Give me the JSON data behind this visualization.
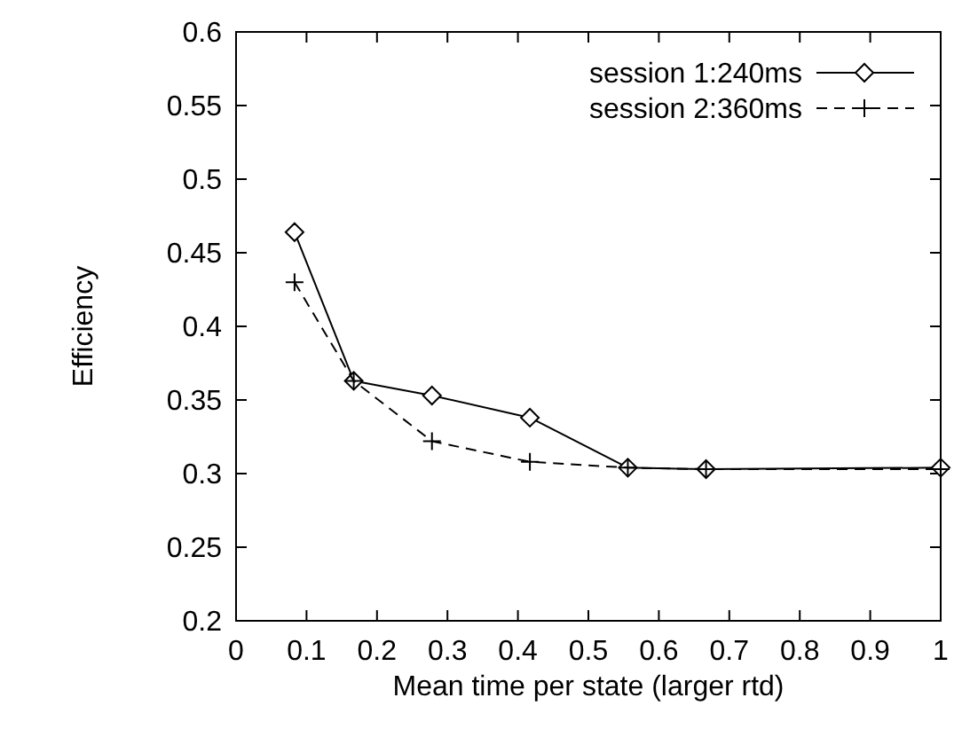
{
  "chart_data": {
    "type": "line",
    "xlabel": "Mean time per state (larger rtd)",
    "ylabel": "Efficiency",
    "x": [
      0.083,
      0.167,
      0.278,
      0.417,
      0.556,
      0.667,
      1
    ],
    "series": [
      {
        "name": "session 1:240ms",
        "color": "#000000",
        "values": [
          0.464,
          0.363,
          0.353,
          0.338,
          0.304,
          0.303,
          0.304
        ],
        "marker": "diamond",
        "line_style": "solid"
      },
      {
        "name": "session 2:360ms",
        "color": "#000000",
        "values": [
          0.43,
          0.363,
          0.322,
          0.308,
          0.304,
          0.303,
          0.303
        ],
        "marker": "cross",
        "line_style": "dashed"
      }
    ],
    "xlim": [
      0,
      1
    ],
    "xticks": [
      0,
      0.1,
      0.2,
      0.3,
      0.4,
      0.5,
      0.6,
      0.7,
      0.8,
      0.9,
      1
    ],
    "ylim": [
      0.2,
      0.6
    ],
    "yticks": [
      0.2,
      0.25,
      0.3,
      0.35,
      0.4,
      0.45,
      0.5,
      0.55,
      0.6
    ],
    "grid": false,
    "legend": "top right"
  }
}
